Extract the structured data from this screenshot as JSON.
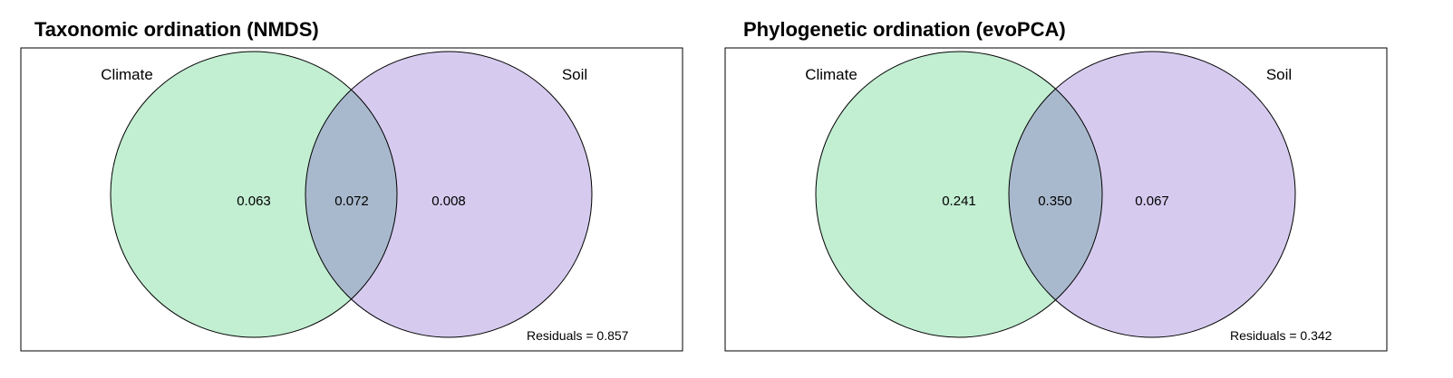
{
  "colors": {
    "circle_a_fill": "#c2eed2",
    "circle_b_fill": "#d6cbef",
    "overlap_fill": "#a9b9cd",
    "stroke": "#000000"
  },
  "panels": [
    {
      "title": "Taxonomic ordination (NMDS)",
      "set_a_label": "Climate",
      "set_b_label": "Soil",
      "a_only": "0.063",
      "overlap": "0.072",
      "b_only": "0.008",
      "residuals": "Residuals = 0.857"
    },
    {
      "title": "Phylogenetic ordination (evoPCA)",
      "set_a_label": "Climate",
      "set_b_label": "Soil",
      "a_only": "0.241",
      "overlap": "0.350",
      "b_only": "0.067",
      "residuals": "Residuals = 0.342"
    }
  ]
}
